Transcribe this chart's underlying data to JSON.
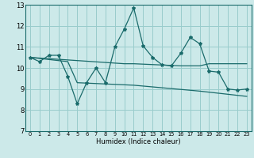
{
  "xlabel": "Humidex (Indice chaleur)",
  "bg_color": "#cce9e9",
  "grid_color": "#99cccc",
  "line_color": "#1a6b6b",
  "xlim": [
    -0.5,
    23.5
  ],
  "ylim": [
    7,
    13
  ],
  "xticks": [
    0,
    1,
    2,
    3,
    4,
    5,
    6,
    7,
    8,
    9,
    10,
    11,
    12,
    13,
    14,
    15,
    16,
    17,
    18,
    19,
    20,
    21,
    22,
    23
  ],
  "yticks": [
    7,
    8,
    9,
    10,
    11,
    12,
    13
  ],
  "line1_x": [
    0,
    1,
    2,
    3,
    4,
    5,
    6,
    7,
    8,
    9,
    10,
    11,
    12,
    13,
    14,
    15,
    16,
    17,
    18,
    19,
    20,
    21,
    22,
    23
  ],
  "line1_y": [
    10.5,
    10.3,
    10.6,
    10.6,
    9.6,
    8.3,
    9.3,
    10.0,
    9.3,
    11.0,
    11.85,
    12.85,
    11.05,
    10.5,
    10.15,
    10.1,
    10.7,
    11.45,
    11.15,
    9.85,
    9.8,
    9.0,
    8.95,
    9.0
  ],
  "line2_x": [
    0,
    1,
    2,
    3,
    4,
    5,
    6,
    7,
    8,
    9,
    10,
    11,
    12,
    13,
    14,
    15,
    16,
    17,
    18,
    19,
    20,
    21,
    22,
    23
  ],
  "line2_y": [
    10.5,
    10.47,
    10.44,
    10.41,
    10.38,
    10.35,
    10.32,
    10.29,
    10.26,
    10.23,
    10.2,
    10.2,
    10.18,
    10.16,
    10.14,
    10.12,
    10.1,
    10.1,
    10.1,
    10.2,
    10.2,
    10.2,
    10.2,
    10.2
  ],
  "line3_x": [
    0,
    1,
    2,
    3,
    4,
    5,
    6,
    7,
    8,
    9,
    10,
    11,
    12,
    13,
    14,
    15,
    16,
    17,
    18,
    19,
    20,
    21,
    22,
    23
  ],
  "line3_y": [
    10.5,
    10.45,
    10.4,
    10.35,
    10.3,
    9.3,
    9.28,
    9.26,
    9.24,
    9.22,
    9.2,
    9.18,
    9.14,
    9.1,
    9.06,
    9.02,
    8.98,
    8.94,
    8.9,
    8.85,
    8.8,
    8.75,
    8.7,
    8.65
  ]
}
